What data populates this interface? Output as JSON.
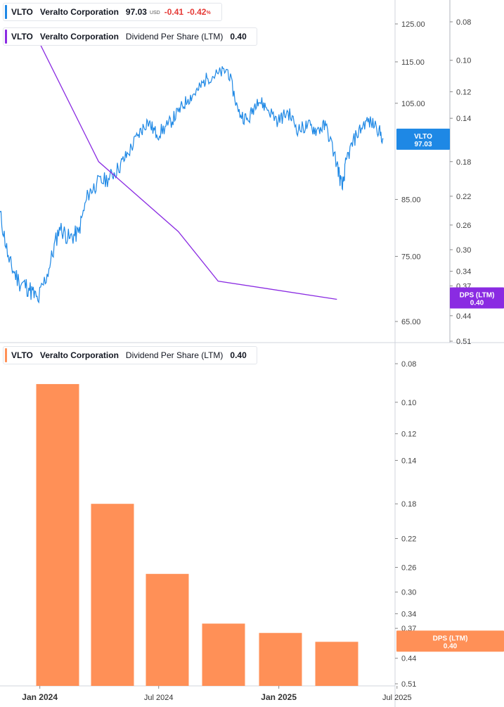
{
  "legend_price": {
    "ticker": "VLTO",
    "name": "Veralto Corporation",
    "price": "97.03",
    "currency": "USD",
    "change": "-0.41",
    "change_pct": "-0.42",
    "pct_unit": "%"
  },
  "legend_dps_top": {
    "ticker": "VLTO",
    "name": "Veralto Corporation",
    "metric": "Dividend Per Share (LTM)",
    "value": "0.40"
  },
  "legend_dps_bottom": {
    "ticker": "VLTO",
    "name": "Veralto Corporation",
    "metric": "Dividend Per Share (LTM)",
    "value": "0.40"
  },
  "badges": {
    "price": {
      "line1": "VLTO",
      "line2": "97.03"
    },
    "dps_top": {
      "line1": "DPS (LTM)",
      "line2": "0.40"
    },
    "dps_bottom": {
      "line1": "DPS (LTM)",
      "line2": "0.40"
    }
  },
  "colors": {
    "price_line": "#1e88e5",
    "dps_line": "#8a2be2",
    "bars": "#ff9057",
    "negative": "#e53935"
  },
  "chart_data": [
    {
      "type": "line",
      "title": "VLTO Veralto Corporation",
      "y_scale": "log",
      "ylim": [
        62,
        130
      ],
      "y_ticks": [
        "125.00",
        "115.00",
        "105.00",
        "85.00",
        "75.00",
        "65.00"
      ],
      "series": [
        {
          "name": "VLTO",
          "x": [
            "2023-10-31",
            "2023-11-15",
            "2023-11-30",
            "2023-12-15",
            "2023-12-29",
            "2024-01-15",
            "2024-01-31",
            "2024-02-15",
            "2024-02-29",
            "2024-03-15",
            "2024-03-28",
            "2024-04-15",
            "2024-04-30",
            "2024-05-15",
            "2024-05-31",
            "2024-06-14",
            "2024-06-28",
            "2024-07-15",
            "2024-07-31",
            "2024-08-15",
            "2024-08-30",
            "2024-09-13",
            "2024-09-30",
            "2024-10-15",
            "2024-10-31",
            "2024-11-15",
            "2024-11-29",
            "2024-12-13",
            "2024-12-31",
            "2025-01-15",
            "2025-01-31",
            "2025-02-14",
            "2025-02-28",
            "2025-03-14",
            "2025-03-31",
            "2025-04-08",
            "2025-04-15",
            "2025-04-30",
            "2025-05-15",
            "2025-05-30",
            "2025-06-10"
          ],
          "values": [
            83,
            74,
            71,
            70,
            68,
            73,
            80,
            78,
            79,
            86,
            88,
            89,
            91,
            94,
            98,
            101,
            98,
            100,
            103,
            106,
            108,
            111,
            112,
            113,
            103,
            101,
            106,
            104,
            101,
            103,
            99,
            100,
            99,
            100,
            92,
            87,
            93,
            98,
            101,
            100,
            97.03
          ]
        },
        {
          "name": "Dividend Per Share (LTM)",
          "scale": "right",
          "x": [
            "2023-12-31",
            "2024-03-31",
            "2024-07-31",
            "2024-09-30",
            "2025-03-31"
          ],
          "values": [
            0.09,
            0.18,
            0.27,
            0.36,
            0.4
          ]
        }
      ],
      "right_axis": {
        "ylim": [
          0.08,
          0.56
        ],
        "ticks": [
          "0.51",
          "0.44",
          "0.37",
          "0.34",
          "0.30",
          "0.26",
          "0.22",
          "0.18",
          "0.14",
          "0.12",
          "0.10",
          "0.08"
        ]
      }
    },
    {
      "type": "bar",
      "title": "Dividend Per Share (LTM)",
      "y_scale": "log",
      "ylim": [
        0.08,
        0.56
      ],
      "y_ticks": [
        "0.51",
        "0.44",
        "0.37",
        "0.34",
        "0.30",
        "0.26",
        "0.22",
        "0.18",
        "0.14",
        "0.12",
        "0.10",
        "0.08"
      ],
      "categories": [
        "2023-12-31",
        "2024-03-31",
        "2024-06-30",
        "2024-09-30",
        "2024-12-31",
        "2025-03-31"
      ],
      "values": [
        0.09,
        0.18,
        0.27,
        0.36,
        0.38,
        0.4
      ]
    }
  ],
  "x_axis": {
    "labels": [
      {
        "text": "Jan 2024",
        "date": "2024-01-01",
        "bold": true
      },
      {
        "text": "Jul 2024",
        "date": "2024-07-01",
        "bold": false
      },
      {
        "text": "Jan 2025",
        "date": "2025-01-01",
        "bold": true
      },
      {
        "text": "Jul 2025",
        "date": "2025-07-01",
        "bold": false
      }
    ]
  }
}
